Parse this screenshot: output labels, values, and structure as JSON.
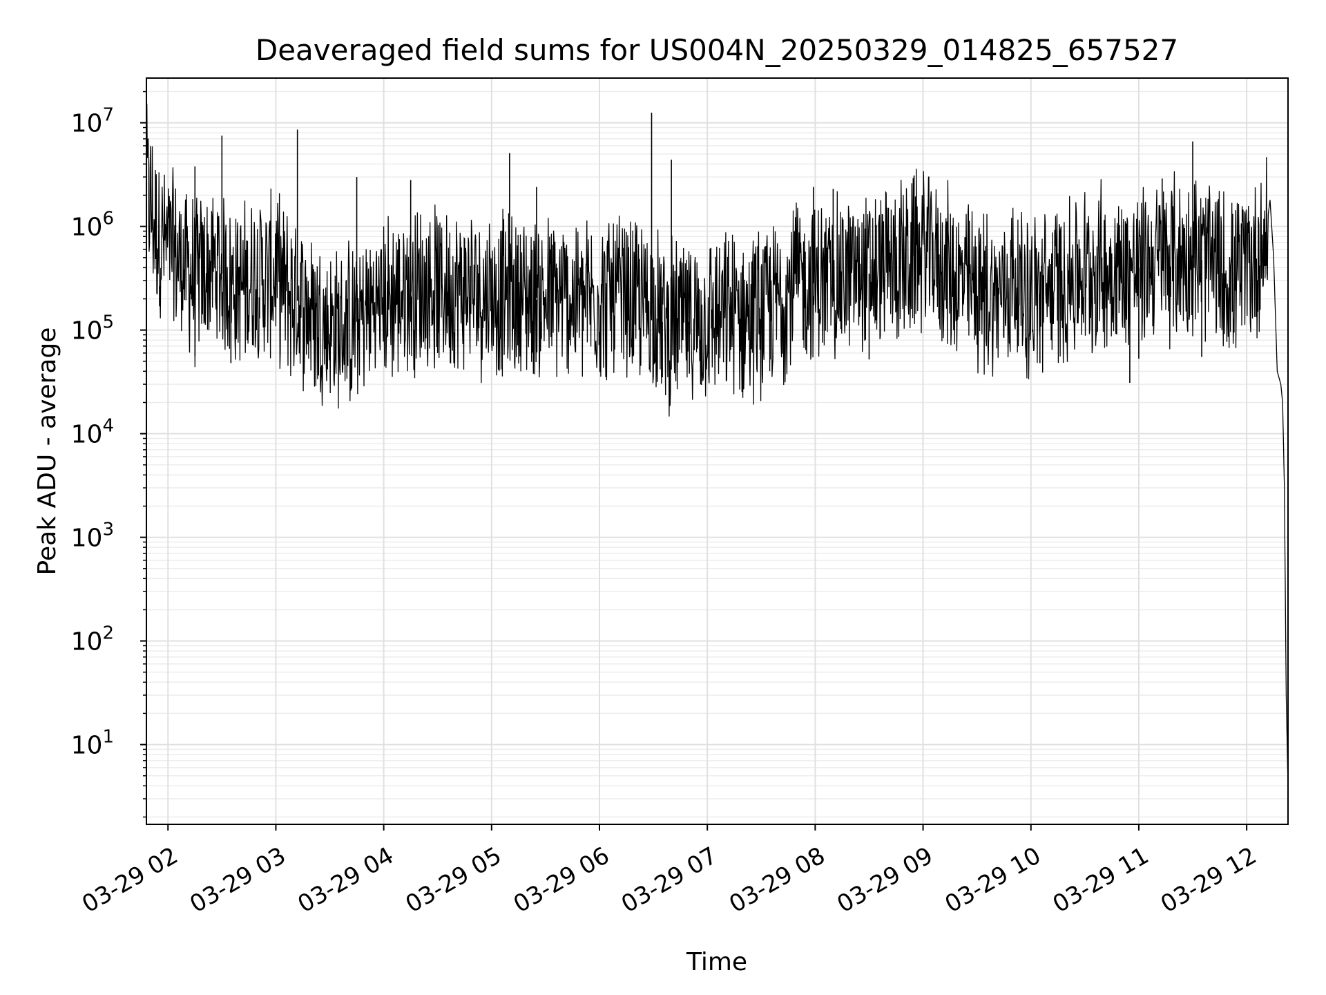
{
  "chart_data": {
    "type": "line",
    "title": "Deaveraged field sums for US004N_20250329_014825_657527",
    "xlabel": "Time",
    "ylabel": "Peak ADU - average",
    "yscale": "log",
    "grid": true,
    "x_tick_labels": [
      "03-29 02",
      "03-29 03",
      "03-29 04",
      "03-29 05",
      "03-29 06",
      "03-29 07",
      "03-29 08",
      "03-29 09",
      "03-29 10",
      "03-29 11",
      "03-29 12"
    ],
    "x_ticks": [
      "2025-03-29 02:00",
      "2025-03-29 03:00",
      "2025-03-29 04:00",
      "2025-03-29 05:00",
      "2025-03-29 06:00",
      "2025-03-29 07:00",
      "2025-03-29 08:00",
      "2025-03-29 09:00",
      "2025-03-29 10:00",
      "2025-03-29 11:00",
      "2025-03-29 12:00"
    ],
    "y_ticks": [
      {
        "value": 10,
        "label_base": "10",
        "label_exp": "1"
      },
      {
        "value": 100,
        "label_base": "10",
        "label_exp": "2"
      },
      {
        "value": 1000,
        "label_base": "10",
        "label_exp": "3"
      },
      {
        "value": 10000,
        "label_base": "10",
        "label_exp": "4"
      },
      {
        "value": 100000,
        "label_base": "10",
        "label_exp": "5"
      },
      {
        "value": 1000000,
        "label_base": "10",
        "label_exp": "6"
      },
      {
        "value": 10000000,
        "label_base": "10",
        "label_exp": "7"
      }
    ],
    "xlim": [
      "2025-03-29 01:48",
      "2025-03-29 12:23"
    ],
    "ylim": [
      1.7,
      27000000
    ],
    "series": [
      {
        "color": "#000000",
        "x": [
          "2025-03-29 01:48",
          "2025-03-29 01:50",
          "2025-03-29 01:52",
          "2025-03-29 01:55",
          "2025-03-29 01:58",
          "2025-03-29 02:05",
          "2025-03-29 02:10",
          "2025-03-29 02:15",
          "2025-03-29 02:20",
          "2025-03-29 02:25",
          "2025-03-29 02:30",
          "2025-03-29 02:35",
          "2025-03-29 02:40",
          "2025-03-29 02:45",
          "2025-03-29 02:50",
          "2025-03-29 02:55",
          "2025-03-29 03:00",
          "2025-03-29 03:05",
          "2025-03-29 03:10",
          "2025-03-29 03:15",
          "2025-03-29 03:20",
          "2025-03-29 03:25",
          "2025-03-29 03:30",
          "2025-03-29 03:35",
          "2025-03-29 03:40",
          "2025-03-29 03:45",
          "2025-03-29 03:50",
          "2025-03-29 03:55",
          "2025-03-29 04:00",
          "2025-03-29 04:10",
          "2025-03-29 04:20",
          "2025-03-29 04:30",
          "2025-03-29 04:40",
          "2025-03-29 04:50",
          "2025-03-29 05:00",
          "2025-03-29 05:10",
          "2025-03-29 05:20",
          "2025-03-29 05:30",
          "2025-03-29 05:40",
          "2025-03-29 05:50",
          "2025-03-29 06:00",
          "2025-03-29 06:10",
          "2025-03-29 06:20",
          "2025-03-29 06:30",
          "2025-03-29 06:35",
          "2025-03-29 06:40",
          "2025-03-29 06:50",
          "2025-03-29 07:00",
          "2025-03-29 07:10",
          "2025-03-29 07:20",
          "2025-03-29 07:30",
          "2025-03-29 07:40",
          "2025-03-29 07:50",
          "2025-03-29 08:00",
          "2025-03-29 08:10",
          "2025-03-29 08:20",
          "2025-03-29 08:30",
          "2025-03-29 08:40",
          "2025-03-29 08:50",
          "2025-03-29 09:00",
          "2025-03-29 09:10",
          "2025-03-29 09:20",
          "2025-03-29 09:30",
          "2025-03-29 09:40",
          "2025-03-29 09:50",
          "2025-03-29 10:00",
          "2025-03-29 10:10",
          "2025-03-29 10:20",
          "2025-03-29 10:30",
          "2025-03-29 10:40",
          "2025-03-29 10:50",
          "2025-03-29 11:00",
          "2025-03-29 11:10",
          "2025-03-29 11:20",
          "2025-03-29 11:30",
          "2025-03-29 11:40",
          "2025-03-29 11:50",
          "2025-03-29 12:00",
          "2025-03-29 12:05",
          "2025-03-29 12:10",
          "2025-03-29 12:13",
          "2025-03-29 12:15",
          "2025-03-29 12:17",
          "2025-03-29 12:19",
          "2025-03-29 12:20",
          "2025-03-29 12:21",
          "2025-03-29 12:22",
          "2025-03-29 12:23"
        ],
        "y": [
          2800000,
          1600000,
          1200000,
          800000,
          700000,
          500000,
          400000,
          300000,
          350000,
          400000,
          350000,
          300000,
          250000,
          300000,
          350000,
          300000,
          350000,
          250000,
          200000,
          180000,
          150000,
          120000,
          110000,
          100000,
          110000,
          120000,
          150000,
          180000,
          200000,
          220000,
          250000,
          250000,
          250000,
          240000,
          230000,
          220000,
          210000,
          200000,
          200000,
          190000,
          200000,
          200000,
          180000,
          180000,
          120000,
          110000,
          120000,
          130000,
          130000,
          140000,
          150000,
          200000,
          300000,
          280000,
          300000,
          350000,
          350000,
          400000,
          450000,
          600000,
          450000,
          300000,
          250000,
          200000,
          300000,
          200000,
          250000,
          300000,
          350000,
          400000,
          380000,
          400000,
          450000,
          500000,
          500000,
          450000,
          300000,
          400000,
          500000,
          700000,
          1800000,
          500000,
          40000,
          30000,
          20000,
          3000,
          30,
          4
        ]
      }
    ],
    "spikes": [
      {
        "x": "2025-03-29 02:15",
        "y": 3800000
      },
      {
        "x": "2025-03-29 02:30",
        "y": 7500000
      },
      {
        "x": "2025-03-29 03:12",
        "y": 8600000
      },
      {
        "x": "2025-03-29 03:45",
        "y": 3000000
      },
      {
        "x": "2025-03-29 04:15",
        "y": 2800000
      },
      {
        "x": "2025-03-29 05:10",
        "y": 5100000
      },
      {
        "x": "2025-03-29 05:25",
        "y": 2400000
      },
      {
        "x": "2025-03-29 06:29",
        "y": 12500000
      },
      {
        "x": "2025-03-29 06:40",
        "y": 4400000
      },
      {
        "x": "2025-03-29 07:59",
        "y": 2400000
      },
      {
        "x": "2025-03-29 08:10",
        "y": 2300000
      },
      {
        "x": "2025-03-29 08:55",
        "y": 3100000
      },
      {
        "x": "2025-03-29 11:30",
        "y": 6600000
      },
      {
        "x": "2025-03-29 11:13",
        "y": 2900000
      }
    ],
    "dips": [
      {
        "x": "2025-03-29 02:15",
        "y": 56000
      },
      {
        "x": "2025-03-29 02:35",
        "y": 48000
      },
      {
        "x": "2025-03-29 03:40",
        "y": 45000
      },
      {
        "x": "2025-03-29 04:30",
        "y": 60000
      },
      {
        "x": "2025-03-29 06:35",
        "y": 35000
      },
      {
        "x": "2025-03-29 06:50",
        "y": 38000
      },
      {
        "x": "2025-03-29 07:35",
        "y": 52000
      },
      {
        "x": "2025-03-29 08:30",
        "y": 52000
      },
      {
        "x": "2025-03-29 10:05",
        "y": 48000
      },
      {
        "x": "2025-03-29 10:55",
        "y": 31000
      },
      {
        "x": "2025-03-29 11:00",
        "y": 53000
      },
      {
        "x": "2025-03-29 11:35",
        "y": 55000
      }
    ]
  }
}
